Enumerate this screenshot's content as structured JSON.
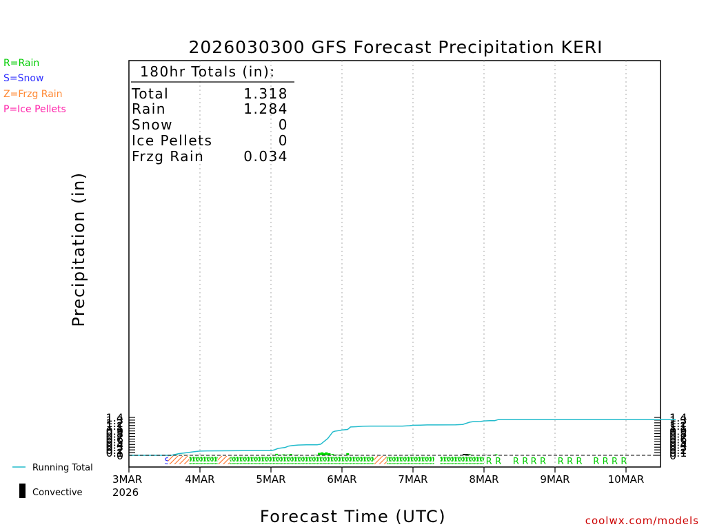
{
  "chart_data": {
    "type": "line",
    "title": "2026030300 GFS Forecast Precipitation KERI",
    "xlabel": "Forecast Time (UTC)",
    "ylabel": "Precipitation (in)",
    "ylim": [
      0,
      1.4
    ],
    "y_ticks": [
      "0",
      "0.1",
      "0.2",
      "0.3",
      "0.4",
      "0.5",
      "0.6",
      "0.7",
      "0.8",
      "0.9",
      "1",
      "1.1",
      "1.2",
      "1.3",
      "1.4"
    ],
    "x_tick_labels": [
      "3MAR",
      "4MAR",
      "5MAR",
      "6MAR",
      "7MAR",
      "8MAR",
      "9MAR",
      "10MAR"
    ],
    "x_year_label": "2026",
    "xlim_days": [
      0,
      7.7
    ],
    "grid": "vertical dotted at day boundaries",
    "legend_types": [
      {
        "code": "R",
        "label": "R=Rain",
        "color": "#00cc00"
      },
      {
        "code": "S",
        "label": "S=Snow",
        "color": "#3333ff"
      },
      {
        "code": "Z",
        "label": "Z=Frzg Rain",
        "color": "#ff8833"
      },
      {
        "code": "P",
        "label": "P=Ice Pellets",
        "color": "#ff22aa"
      }
    ],
    "legend_bottom": {
      "running_total": "Running Total",
      "convective": "Convective"
    },
    "totals_box": {
      "header": "180hr Totals (in):",
      "rows": [
        {
          "label": "Total",
          "value": "1.318"
        },
        {
          "label": "Rain",
          "value": "1.284"
        },
        {
          "label": "Snow",
          "value": "0"
        },
        {
          "label": "Ice Pellets",
          "value": "0"
        },
        {
          "label": "Frzg Rain",
          "value": "0.034"
        }
      ]
    },
    "running_total": {
      "name": "Running Total",
      "color": "#22bbcc",
      "x_days": [
        0,
        0.6,
        0.7,
        0.82,
        0.92,
        1.0,
        1.1,
        1.3,
        1.6,
        2.0,
        2.05,
        2.1,
        2.2,
        2.25,
        2.3,
        2.38,
        2.5,
        2.65,
        2.7,
        2.8,
        2.87,
        2.9,
        2.95,
        3.0,
        3.08,
        3.12,
        3.2,
        3.3,
        3.4,
        3.55,
        3.85,
        3.95,
        4.0,
        4.1,
        4.2,
        4.6,
        4.7,
        4.8,
        4.85,
        4.95,
        5.0,
        5.08,
        5.15,
        5.2,
        5.3,
        5.35,
        5.45,
        5.55,
        7.7
      ],
      "values": [
        0,
        0,
        0.06,
        0.1,
        0.135,
        0.155,
        0.163,
        0.165,
        0.172,
        0.172,
        0.2,
        0.255,
        0.29,
        0.34,
        0.36,
        0.38,
        0.39,
        0.39,
        0.41,
        0.62,
        0.86,
        0.89,
        0.91,
        0.935,
        0.955,
        1.045,
        1.055,
        1.075,
        1.078,
        1.08,
        1.08,
        1.095,
        1.11,
        1.115,
        1.122,
        1.124,
        1.14,
        1.225,
        1.245,
        1.25,
        1.27,
        1.28,
        1.28,
        1.318,
        1.318,
        1.318,
        1.318,
        1.318,
        1.318
      ]
    },
    "precip_bars": {
      "x_days": [
        0.58,
        0.62,
        0.67,
        0.72,
        0.77,
        0.82,
        0.87,
        0.92,
        0.97,
        1.02,
        1.07,
        1.12,
        1.17,
        1.22,
        1.27,
        1.32,
        2.03,
        2.08,
        2.13,
        2.18,
        2.23,
        2.28,
        2.33,
        2.38,
        2.63,
        2.68,
        2.72,
        2.75,
        2.78,
        2.82,
        2.87,
        2.92,
        2.97,
        3.02,
        3.08,
        3.13,
        3.18,
        3.23,
        3.92,
        3.97,
        4.02,
        4.12,
        4.22,
        4.68,
        4.72,
        4.76,
        4.79,
        4.82,
        5.02,
        5.07,
        5.12,
        5.17
      ],
      "values": [
        0.01,
        0.01,
        0.015,
        0.01,
        0.015,
        0.01,
        0.01,
        0.008,
        0.01,
        0.01,
        0.008,
        0.008,
        0.005,
        0.005,
        0.003,
        0.003,
        0.02,
        0.055,
        0.02,
        0.035,
        0.025,
        0.05,
        0.01,
        0.02,
        0.015,
        0.09,
        0.11,
        0.08,
        0.11,
        0.08,
        0.045,
        0.02,
        0.025,
        0.01,
        0.08,
        0.01,
        0.005,
        0.01,
        0.01,
        0.015,
        0.005,
        0.003,
        0.003,
        0.01,
        0.045,
        0.05,
        0.04,
        0.02,
        0.01,
        0.01,
        0.005,
        0.035
      ],
      "convective": [
        0.005,
        0.005,
        0.003,
        0,
        0,
        0,
        0,
        0,
        0,
        0,
        0,
        0,
        0,
        0,
        0,
        0,
        0,
        0,
        0,
        0,
        0,
        0,
        0,
        0,
        0,
        0,
        0,
        0,
        0,
        0,
        0.005,
        0.01,
        0.005,
        0.005,
        0.01,
        0,
        0,
        0,
        0,
        0,
        0,
        0.003,
        0.003,
        0.01,
        0.05,
        0.045,
        0.03,
        0.005,
        0.01,
        0.01,
        0,
        0
      ]
    },
    "ptype_strip": {
      "blocks": [
        {
          "type": "S",
          "start": 0.5,
          "end": 0.55
        },
        {
          "type": "Z",
          "start": 0.55,
          "end": 0.85
        },
        {
          "type": "R",
          "start": 0.85,
          "end": 1.25
        },
        {
          "type": "Z",
          "start": 1.25,
          "end": 1.42
        },
        {
          "type": "R",
          "start": 1.42,
          "end": 3.45
        },
        {
          "type": "Z",
          "start": 3.45,
          "end": 3.63
        },
        {
          "type": "R",
          "start": 3.63,
          "end": 4.3
        },
        {
          "type": "R",
          "start": 4.38,
          "end": 5.0
        }
      ],
      "letters": [
        {
          "text": "R",
          "x": 5.07
        },
        {
          "text": "R",
          "x": 5.2
        },
        {
          "text": "R",
          "x": 5.45
        },
        {
          "text": "R",
          "x": 5.58
        },
        {
          "text": "R",
          "x": 5.7
        },
        {
          "text": "R",
          "x": 5.83
        },
        {
          "text": "R",
          "x": 6.08
        },
        {
          "text": "R",
          "x": 6.21
        },
        {
          "text": "R",
          "x": 6.34
        },
        {
          "text": "R",
          "x": 6.58
        },
        {
          "text": "R",
          "x": 6.71
        },
        {
          "text": "R",
          "x": 6.84
        },
        {
          "text": "R",
          "x": 6.97
        }
      ]
    }
  },
  "footer": {
    "credit": "coolwx.com/models"
  }
}
